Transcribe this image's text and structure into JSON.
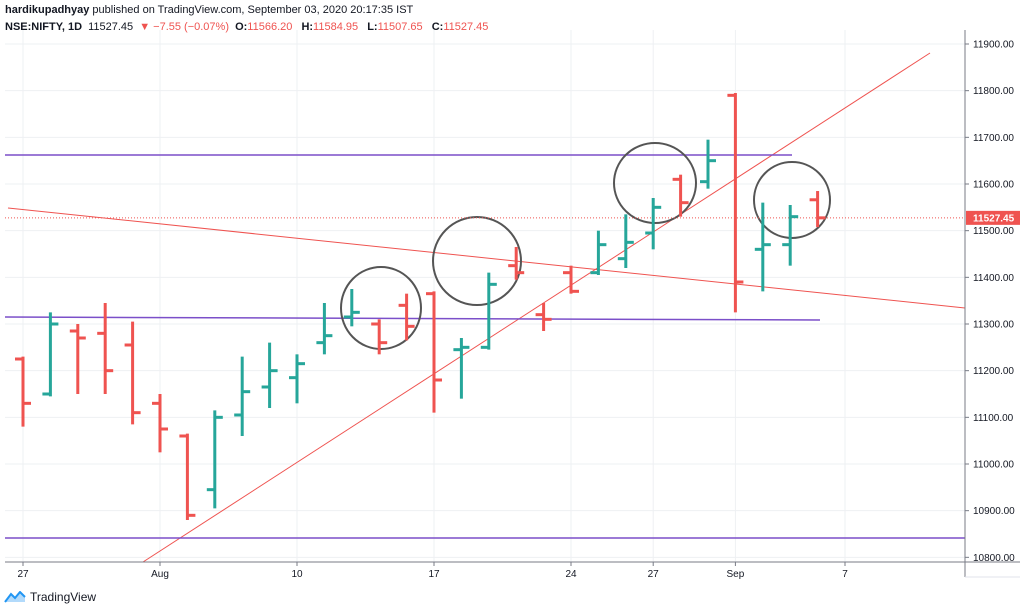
{
  "header": {
    "username": "hardikupadhyay",
    "published_text": "published on TradingView.com, September 03, 2020 20:17:35 IST",
    "symbol": "NSE:NIFTY, 1D",
    "last_price": "11527.45",
    "change": "▼ −7.55 (−0.07%)",
    "open_label": "O:",
    "open": "11566.20",
    "high_label": "H:",
    "high": "11584.95",
    "low_label": "L:",
    "low": "11507.65",
    "close_label": "C:",
    "close": "11527.45"
  },
  "footer": {
    "brand": "TradingView"
  },
  "colors": {
    "up": "#26a69a",
    "down": "#ef5350",
    "trendline": "#ef5350",
    "horizontal": "#7b4fc9",
    "circle": "#555555",
    "grid": "#eef0f3"
  },
  "chart_data": {
    "type": "ohlc",
    "ylim": [
      10790,
      11930
    ],
    "y_ticks": [
      "10800.00",
      "10900.00",
      "11000.00",
      "11100.00",
      "11200.00",
      "11300.00",
      "11400.00",
      "11500.00",
      "11600.00",
      "11700.00",
      "11800.00",
      "11900.00"
    ],
    "x_labels": [
      {
        "label": "27",
        "index": 0
      },
      {
        "label": "Aug",
        "index": 5
      },
      {
        "label": "10",
        "index": 10
      },
      {
        "label": "17",
        "index": 15
      },
      {
        "label": "24",
        "index": 20
      },
      {
        "label": "27",
        "index": 23
      },
      {
        "label": "Sep",
        "index": 26
      },
      {
        "label": "7",
        "index": 30
      }
    ],
    "bars": [
      {
        "o": 11225,
        "h": 11230,
        "l": 11080,
        "c": 11130
      },
      {
        "o": 11150,
        "h": 11325,
        "l": 11145,
        "c": 11300
      },
      {
        "o": 11285,
        "h": 11300,
        "l": 11150,
        "c": 11270
      },
      {
        "o": 11280,
        "h": 11345,
        "l": 11150,
        "c": 11200
      },
      {
        "o": 11255,
        "h": 11305,
        "l": 11085,
        "c": 11110
      },
      {
        "o": 11130,
        "h": 11150,
        "l": 11025,
        "c": 11075
      },
      {
        "o": 11060,
        "h": 11065,
        "l": 10880,
        "c": 10890
      },
      {
        "o": 10945,
        "h": 11115,
        "l": 10905,
        "c": 11100
      },
      {
        "o": 11105,
        "h": 11230,
        "l": 11060,
        "c": 11155
      },
      {
        "o": 11165,
        "h": 11260,
        "l": 11120,
        "c": 11200
      },
      {
        "o": 11185,
        "h": 11235,
        "l": 11130,
        "c": 11215
      },
      {
        "o": 11260,
        "h": 11345,
        "l": 11235,
        "c": 11275
      },
      {
        "o": 11315,
        "h": 11375,
        "l": 11295,
        "c": 11325
      },
      {
        "o": 11300,
        "h": 11310,
        "l": 11235,
        "c": 11260
      },
      {
        "o": 11340,
        "h": 11365,
        "l": 11265,
        "c": 11295
      },
      {
        "o": 11365,
        "h": 11370,
        "l": 11110,
        "c": 11180
      },
      {
        "o": 11245,
        "h": 11270,
        "l": 11140,
        "c": 11250
      },
      {
        "o": 11250,
        "h": 11410,
        "l": 11245,
        "c": 11385
      },
      {
        "o": 11425,
        "h": 11465,
        "l": 11395,
        "c": 11410
      },
      {
        "o": 11320,
        "h": 11345,
        "l": 11285,
        "c": 11310
      },
      {
        "o": 11410,
        "h": 11425,
        "l": 11365,
        "c": 11370
      },
      {
        "o": 11410,
        "h": 11500,
        "l": 11405,
        "c": 11470
      },
      {
        "o": 11440,
        "h": 11535,
        "l": 11420,
        "c": 11475
      },
      {
        "o": 11495,
        "h": 11570,
        "l": 11460,
        "c": 11550
      },
      {
        "o": 11610,
        "h": 11620,
        "l": 11530,
        "c": 11560
      },
      {
        "o": 11605,
        "h": 11695,
        "l": 11590,
        "c": 11650
      },
      {
        "o": 11790,
        "h": 11795,
        "l": 11325,
        "c": 11390
      },
      {
        "o": 11460,
        "h": 11560,
        "l": 11370,
        "c": 11470
      },
      {
        "o": 11470,
        "h": 11555,
        "l": 11425,
        "c": 11530
      },
      {
        "o": 11566.2,
        "h": 11584.95,
        "l": 11507.65,
        "c": 11527.45
      }
    ],
    "last_price_label": "11527.45"
  }
}
